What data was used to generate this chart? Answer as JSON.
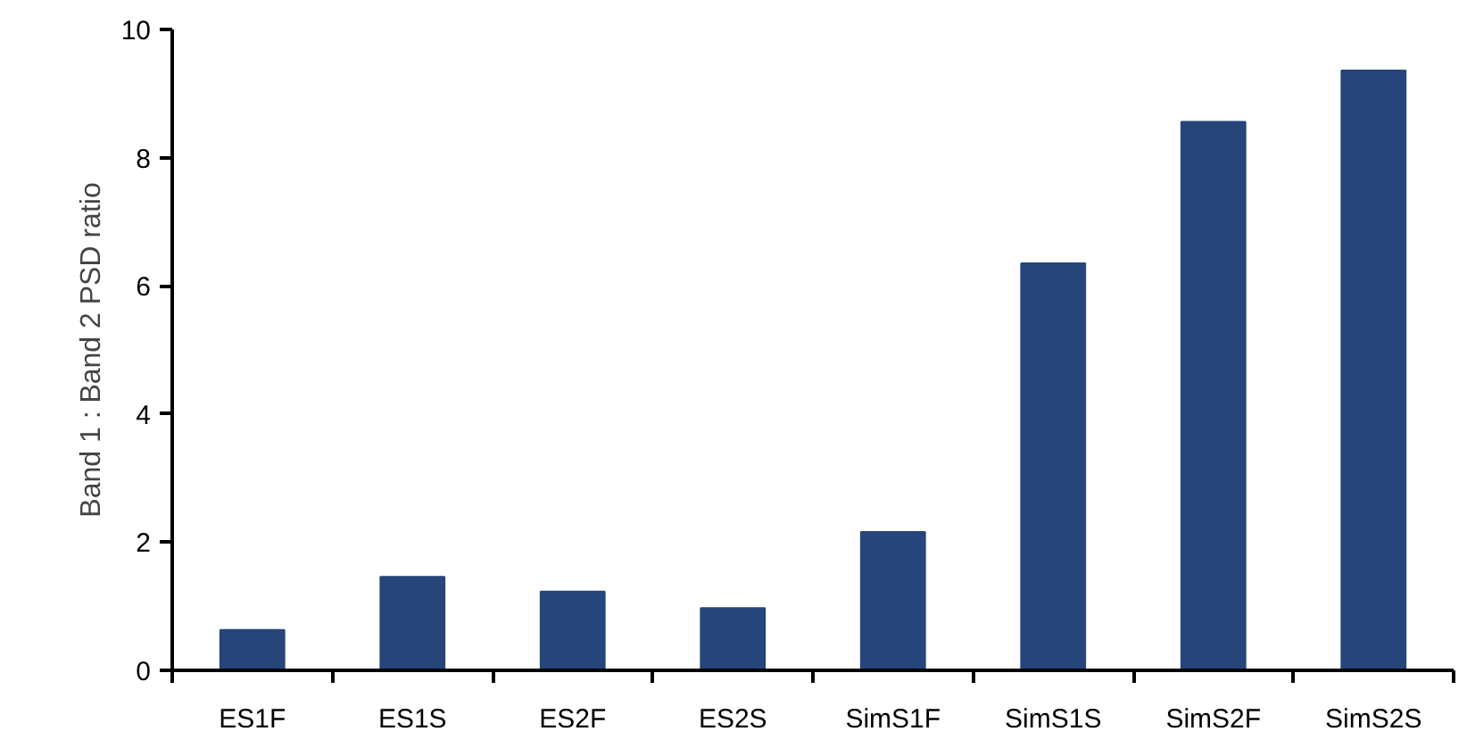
{
  "chart_data": {
    "type": "bar",
    "ylabel": "Band 1 : Band 2 PSD ratio",
    "categories": [
      "ES1F",
      "ES1S",
      "ES2F",
      "ES2S",
      "SimS1F",
      "SimS1S",
      "SimS2F",
      "SimS2S"
    ],
    "values": [
      0.63,
      1.46,
      1.23,
      0.97,
      2.16,
      6.35,
      8.56,
      9.36
    ],
    "color": "#26457a",
    "ylim": [
      0,
      10
    ],
    "yticks": [
      0,
      2,
      4,
      6,
      8,
      10
    ],
    "grid": false
  }
}
